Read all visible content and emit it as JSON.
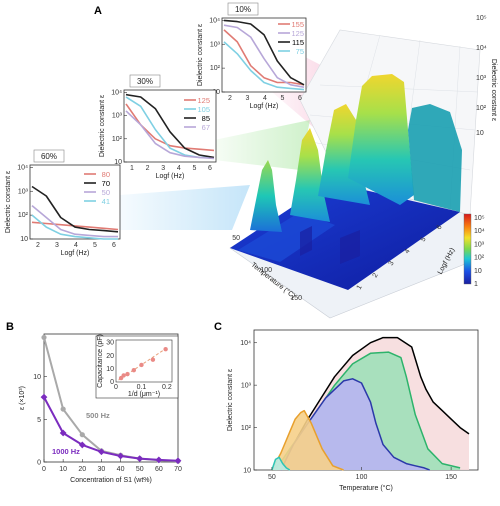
{
  "panels": {
    "a": "A",
    "b": "B",
    "c": "C"
  },
  "chart_data": [
    {
      "id": "A_3d",
      "type": "area",
      "title": "",
      "xlabel": "Temperature (°C)",
      "ylabel": "Logf (Hz)",
      "zlabel": "Dielectric constant ε",
      "z_ticks": [
        "10",
        "10²",
        "10³",
        "10⁴",
        "10⁵"
      ],
      "x_ticks": [
        "50",
        "100",
        "150"
      ],
      "y_ticks": [
        "1",
        "2",
        "3",
        "4",
        "5",
        "6"
      ],
      "colorbar": {
        "ticks": [
          "10⁵",
          "10⁴",
          "10³",
          "10²",
          "10",
          "1"
        ],
        "colors": [
          "#d7191c",
          "#f97f10",
          "#f2e12a",
          "#7bd94e",
          "#1ec7d6",
          "#1b50e6",
          "#1a1fa0"
        ]
      },
      "insets": [
        {
          "label": "10%",
          "xlabel": "Logf (Hz)",
          "ylabel": "Dielectric constant ε",
          "y_ticks": [
            "10",
            "10²",
            "10³",
            "10⁴"
          ],
          "x_ticks": [
            "2",
            "3",
            "4",
            "5",
            "6"
          ],
          "series": [
            {
              "name": "155",
              "color": "#e07b74",
              "y": [
                3.6,
                3.1,
                2.1,
                1.6,
                1.4,
                1.4,
                1.3
              ]
            },
            {
              "name": "125",
              "color": "#b7a7d8",
              "y": [
                3.8,
                3.7,
                3.3,
                2.4,
                1.6,
                1.3,
                1.2
              ]
            },
            {
              "name": "115",
              "color": "#222222",
              "y": [
                4.0,
                3.95,
                3.85,
                3.4,
                2.3,
                1.6,
                1.3
              ]
            },
            {
              "name": "75",
              "color": "#7fd0e3",
              "y": [
                3.1,
                2.6,
                1.9,
                1.4,
                1.2,
                1.15,
                1.1
              ]
            }
          ]
        },
        {
          "label": "30%",
          "xlabel": "Logf (Hz)",
          "ylabel": "Dielectric constant ε",
          "y_ticks": [
            "10",
            "10²",
            "10³",
            "10⁴"
          ],
          "x_ticks": [
            "1",
            "2",
            "3",
            "4",
            "5",
            "6"
          ],
          "series": [
            {
              "name": "125",
              "color": "#e07b74",
              "y": [
                3.5,
                2.6,
                2.0,
                1.7,
                1.6,
                1.55,
                1.5
              ]
            },
            {
              "name": "105",
              "color": "#7fd0e3",
              "y": [
                3.8,
                3.4,
                2.4,
                1.6,
                1.3,
                1.2,
                1.2
              ]
            },
            {
              "name": "85",
              "color": "#222222",
              "y": [
                3.9,
                3.8,
                3.3,
                2.3,
                1.6,
                1.3,
                1.2
              ]
            },
            {
              "name": "67",
              "color": "#b7a7d8",
              "y": [
                3.2,
                2.6,
                1.8,
                1.4,
                1.25,
                1.2,
                1.15
              ]
            }
          ]
        },
        {
          "label": "60%",
          "xlabel": "Logf (Hz)",
          "ylabel": "Dielectric constant ε",
          "y_ticks": [
            "10",
            "10²",
            "10³",
            "10⁴"
          ],
          "x_ticks": [
            "2",
            "3",
            "4",
            "5",
            "6"
          ],
          "series": [
            {
              "name": "80",
              "color": "#e07b74",
              "y": [
                1.7,
                1.65,
                1.6,
                1.55,
                1.5,
                1.45,
                1.4
              ]
            },
            {
              "name": "70",
              "color": "#222222",
              "y": [
                3.2,
                2.8,
                1.9,
                1.5,
                1.4,
                1.35,
                1.3
              ]
            },
            {
              "name": "50",
              "color": "#b7a7d8",
              "y": [
                2.4,
                1.9,
                1.4,
                1.2,
                1.15,
                1.1,
                1.1
              ]
            },
            {
              "name": "41",
              "color": "#7fd0e3",
              "y": [
                2.0,
                1.5,
                1.2,
                1.1,
                1.05,
                1.0,
                1.0
              ]
            }
          ]
        }
      ]
    },
    {
      "id": "B",
      "type": "line",
      "title": "",
      "xlabel": "Concentration of S1 (wt%)",
      "ylabel": "ε (×10³)",
      "xlim": [
        0,
        70
      ],
      "ylim": [
        0,
        15
      ],
      "x_ticks": [
        "0",
        "10",
        "20",
        "30",
        "40",
        "50",
        "60",
        "70"
      ],
      "y_ticks": [
        "0",
        "5",
        "10"
      ],
      "x": [
        0,
        10,
        20,
        30,
        40,
        50,
        60,
        70
      ],
      "series": [
        {
          "name": "500 Hz",
          "color": "#a9a9a9",
          "values": [
            14.6,
            6.2,
            3.2,
            1.3,
            0.8,
            0.4,
            0.2,
            0.1
          ]
        },
        {
          "name": "1000 Hz",
          "color": "#7b2cbf",
          "values": [
            7.6,
            3.4,
            2.0,
            1.2,
            0.7,
            0.4,
            0.25,
            0.15
          ]
        }
      ],
      "inset": {
        "type": "scatter",
        "xlabel": "1/d (μm⁻¹)",
        "ylabel": "Capacitance (pF)",
        "x_ticks": [
          "0",
          "0.1",
          "0.2"
        ],
        "y_ticks": [
          "0",
          "10",
          "20",
          "30"
        ],
        "x": [
          0.02,
          0.03,
          0.045,
          0.07,
          0.1,
          0.145,
          0.195
        ],
        "y": [
          3,
          5,
          6,
          9,
          13,
          17,
          25
        ]
      }
    },
    {
      "id": "C",
      "type": "area",
      "title": "",
      "xlabel": "Temperature (°C)",
      "ylabel": "Dielectric constant ε",
      "xlim": [
        40,
        165
      ],
      "x_ticks": [
        "50",
        "100",
        "150"
      ],
      "y_ticks": [
        "10",
        "10²",
        "10³",
        "10⁴"
      ],
      "series": [
        {
          "fill": "#f6dcdd",
          "stroke": "#000000",
          "x": [
            50,
            58,
            70,
            85,
            95,
            105,
            112,
            120,
            128,
            133,
            136,
            140,
            145,
            150,
            155,
            160
          ],
          "y": [
            1.0,
            1.3,
            2.2,
            3.2,
            3.7,
            4.0,
            4.12,
            4.12,
            3.9,
            3.2,
            2.9,
            2.6,
            2.4,
            2.2,
            2.0,
            1.85
          ]
        },
        {
          "fill": "#9ee0b9",
          "stroke": "#2db36b",
          "x": [
            52,
            60,
            72,
            85,
            95,
            105,
            115,
            122,
            125,
            130,
            137,
            145,
            155
          ],
          "y": [
            1.0,
            1.5,
            2.2,
            3.0,
            3.5,
            3.75,
            3.78,
            3.65,
            3.2,
            2.3,
            1.5,
            1.15,
            1.05
          ]
        },
        {
          "fill": "#b8b5f2",
          "stroke": "#2b39a9",
          "x": [
            55,
            62,
            70,
            80,
            90,
            95,
            100,
            105,
            108,
            112,
            118,
            125,
            130,
            135,
            138
          ],
          "y": [
            1.0,
            1.6,
            2.1,
            2.7,
            3.1,
            3.15,
            3.05,
            2.6,
            2.1,
            1.6,
            1.3,
            1.15,
            1.1,
            1.05,
            1.0
          ]
        },
        {
          "fill": "#f6d08a",
          "stroke": "#e8a02d",
          "x": [
            50,
            55,
            60,
            63,
            66,
            68,
            72,
            78,
            84,
            90
          ],
          "y": [
            1.0,
            1.4,
            1.9,
            2.2,
            2.35,
            2.4,
            2.1,
            1.5,
            1.1,
            1.0
          ]
        },
        {
          "fill": "#b9ece6",
          "stroke": "#2ec5b5",
          "x": [
            50,
            52,
            54,
            56,
            58,
            60
          ],
          "y": [
            1.0,
            1.25,
            1.3,
            1.15,
            1.05,
            1.0
          ]
        }
      ]
    }
  ]
}
